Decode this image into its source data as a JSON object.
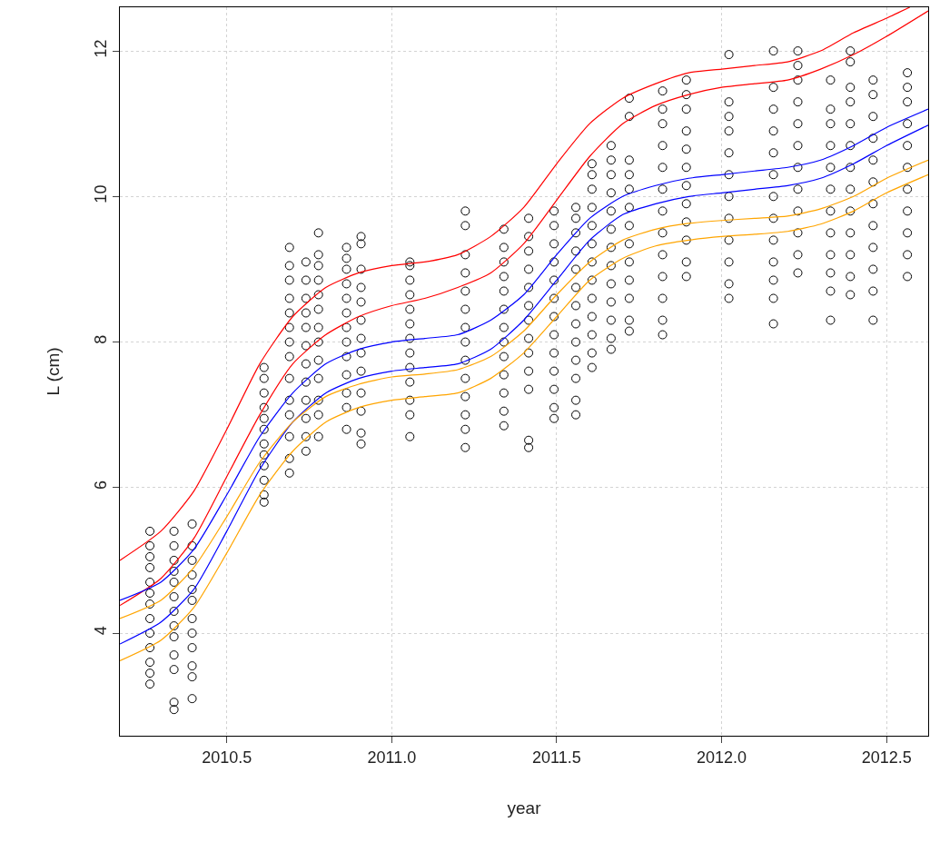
{
  "chart_data": {
    "type": "scatter",
    "marker": "circle",
    "xlabel": "year",
    "ylabel": "L (cm)",
    "xlim": [
      2010.176,
      2012.626
    ],
    "ylim": [
      2.59,
      12.6
    ],
    "xticks": [
      2010.5,
      {
        "value": 2011,
        "label": "2011.0"
      },
      2011.5,
      {
        "value": 2012,
        "label": "2012.0"
      },
      2012.5
    ],
    "yticks": [
      4,
      6,
      8,
      10,
      12
    ],
    "grid": true,
    "series": [
      {
        "color": "#000000",
        "x": [
          2010.267,
          2010.267,
          2010.267,
          2010.267,
          2010.267,
          2010.267,
          2010.267,
          2010.267,
          2010.267,
          2010.267,
          2010.267,
          2010.267,
          2010.267
        ],
        "values": [
          3.3,
          3.45,
          3.6,
          3.8,
          4.0,
          4.2,
          4.4,
          4.55,
          4.7,
          4.9,
          5.05,
          5.2,
          5.4
        ]
      },
      {
        "color": "#000000",
        "x": [
          2010.34,
          2010.34,
          2010.34,
          2010.34,
          2010.34,
          2010.34,
          2010.34,
          2010.34,
          2010.34,
          2010.34,
          2010.34,
          2010.34,
          2010.34
        ],
        "values": [
          2.95,
          3.05,
          3.5,
          3.7,
          3.95,
          4.1,
          4.3,
          4.5,
          4.7,
          4.85,
          5.0,
          5.2,
          5.4
        ]
      },
      {
        "color": "#000000",
        "x": [
          2010.395,
          2010.395,
          2010.395,
          2010.395,
          2010.395,
          2010.395,
          2010.395,
          2010.395,
          2010.395,
          2010.395,
          2010.395,
          2010.395
        ],
        "values": [
          3.1,
          3.4,
          3.55,
          3.8,
          4.0,
          4.2,
          4.45,
          4.6,
          4.8,
          5.0,
          5.2,
          5.5
        ]
      },
      {
        "color": "#000000",
        "x": [
          2010.613,
          2010.613,
          2010.613,
          2010.613,
          2010.613,
          2010.613,
          2010.613,
          2010.613,
          2010.613,
          2010.613,
          2010.613,
          2010.613
        ],
        "values": [
          5.8,
          5.9,
          6.1,
          6.3,
          6.45,
          6.6,
          6.8,
          6.95,
          7.1,
          7.3,
          7.5,
          7.65
        ]
      },
      {
        "color": "#000000",
        "x": [
          2010.69,
          2010.69,
          2010.69,
          2010.69,
          2010.69,
          2010.69,
          2010.69,
          2010.69,
          2010.69,
          2010.69,
          2010.69,
          2010.69,
          2010.69,
          2010.69
        ],
        "values": [
          6.2,
          6.4,
          6.7,
          7.0,
          7.2,
          7.5,
          7.8,
          8.0,
          8.2,
          8.4,
          8.6,
          8.85,
          9.05,
          9.3
        ]
      },
      {
        "color": "#000000",
        "x": [
          2010.74,
          2010.74,
          2010.74,
          2010.74,
          2010.74,
          2010.74,
          2010.74,
          2010.74,
          2010.74,
          2010.74,
          2010.74,
          2010.74
        ],
        "values": [
          6.5,
          6.7,
          6.95,
          7.2,
          7.45,
          7.7,
          7.95,
          8.2,
          8.4,
          8.6,
          8.85,
          9.1
        ]
      },
      {
        "color": "#000000",
        "x": [
          2010.778,
          2010.778,
          2010.778,
          2010.778,
          2010.778,
          2010.778,
          2010.778,
          2010.778,
          2010.778,
          2010.778,
          2010.778,
          2010.778,
          2010.778
        ],
        "values": [
          6.7,
          7.0,
          7.2,
          7.5,
          7.75,
          8.0,
          8.2,
          8.45,
          8.65,
          8.85,
          9.05,
          9.2,
          9.5
        ]
      },
      {
        "color": "#000000",
        "x": [
          2010.863,
          2010.863,
          2010.863,
          2010.863,
          2010.863,
          2010.863,
          2010.863,
          2010.863,
          2010.863,
          2010.863,
          2010.863,
          2010.863,
          2010.863
        ],
        "values": [
          6.8,
          7.1,
          7.3,
          7.55,
          7.8,
          8.0,
          8.2,
          8.4,
          8.6,
          8.8,
          9.0,
          9.15,
          9.3
        ]
      },
      {
        "color": "#000000",
        "x": [
          2010.907,
          2010.907,
          2010.907,
          2010.907,
          2010.907,
          2010.907,
          2010.907,
          2010.907,
          2010.907,
          2010.907,
          2010.907,
          2010.907,
          2010.907
        ],
        "values": [
          6.6,
          6.75,
          7.05,
          7.3,
          7.6,
          7.85,
          8.05,
          8.3,
          8.55,
          8.75,
          9.0,
          9.35,
          9.45
        ]
      },
      {
        "color": "#000000",
        "x": [
          2011.055,
          2011.055,
          2011.055,
          2011.055,
          2011.055,
          2011.055,
          2011.055,
          2011.055,
          2011.055,
          2011.055,
          2011.055,
          2011.055,
          2011.055
        ],
        "values": [
          6.7,
          7.0,
          7.2,
          7.45,
          7.65,
          7.85,
          8.05,
          8.25,
          8.45,
          8.65,
          8.85,
          9.05,
          9.1
        ]
      },
      {
        "color": "#000000",
        "x": [
          2011.223,
          2011.223,
          2011.223,
          2011.223,
          2011.223,
          2011.223,
          2011.223,
          2011.223,
          2011.223,
          2011.223,
          2011.223,
          2011.223,
          2011.223,
          2011.223
        ],
        "values": [
          6.55,
          6.8,
          7.0,
          7.25,
          7.5,
          7.75,
          8.0,
          8.2,
          8.45,
          8.7,
          8.95,
          9.2,
          9.6,
          9.8
        ]
      },
      {
        "color": "#000000",
        "x": [
          2011.34,
          2011.34,
          2011.34,
          2011.34,
          2011.34,
          2011.34,
          2011.34,
          2011.34,
          2011.34,
          2011.34,
          2011.34,
          2011.34,
          2011.34
        ],
        "values": [
          6.85,
          7.05,
          7.3,
          7.55,
          7.8,
          8.0,
          8.2,
          8.45,
          8.7,
          8.9,
          9.1,
          9.3,
          9.55
        ]
      },
      {
        "color": "#000000",
        "x": [
          2011.415,
          2011.415,
          2011.415,
          2011.415,
          2011.415,
          2011.415,
          2011.415,
          2011.415,
          2011.415,
          2011.415,
          2011.415,
          2011.415,
          2011.415
        ],
        "values": [
          6.55,
          6.65,
          7.35,
          7.6,
          7.85,
          8.05,
          8.3,
          8.5,
          8.75,
          9.0,
          9.25,
          9.45,
          9.7
        ]
      },
      {
        "color": "#000000",
        "x": [
          2011.492,
          2011.492,
          2011.492,
          2011.492,
          2011.492,
          2011.492,
          2011.492,
          2011.492,
          2011.492,
          2011.492,
          2011.492,
          2011.492,
          2011.492
        ],
        "values": [
          6.95,
          7.1,
          7.35,
          7.6,
          7.85,
          8.1,
          8.35,
          8.6,
          8.85,
          9.1,
          9.35,
          9.6,
          9.8
        ]
      },
      {
        "color": "#000000",
        "x": [
          2011.558,
          2011.558,
          2011.558,
          2011.558,
          2011.558,
          2011.558,
          2011.558,
          2011.558,
          2011.558,
          2011.558,
          2011.558,
          2011.558,
          2011.558
        ],
        "values": [
          7.0,
          7.2,
          7.5,
          7.75,
          8.0,
          8.25,
          8.5,
          8.75,
          9.0,
          9.25,
          9.5,
          9.7,
          9.85
        ]
      },
      {
        "color": "#000000",
        "x": [
          2011.607,
          2011.607,
          2011.607,
          2011.607,
          2011.607,
          2011.607,
          2011.607,
          2011.607,
          2011.607,
          2011.607,
          2011.607,
          2011.607,
          2011.607
        ],
        "values": [
          7.65,
          7.85,
          8.1,
          8.35,
          8.6,
          8.85,
          9.1,
          9.35,
          9.6,
          9.85,
          10.1,
          10.3,
          10.45
        ]
      },
      {
        "color": "#000000",
        "x": [
          2011.665,
          2011.665,
          2011.665,
          2011.665,
          2011.665,
          2011.665,
          2011.665,
          2011.665,
          2011.665,
          2011.665,
          2011.665,
          2011.665,
          2011.665
        ],
        "values": [
          7.9,
          8.05,
          8.3,
          8.55,
          8.8,
          9.05,
          9.3,
          9.55,
          9.8,
          10.05,
          10.3,
          10.5,
          10.7
        ]
      },
      {
        "color": "#000000",
        "x": [
          2011.72,
          2011.72,
          2011.72,
          2011.72,
          2011.72,
          2011.72,
          2011.72,
          2011.72,
          2011.72,
          2011.72,
          2011.72,
          2011.72,
          2011.72
        ],
        "values": [
          8.15,
          8.3,
          8.6,
          8.85,
          9.1,
          9.35,
          9.6,
          9.85,
          10.1,
          10.3,
          10.5,
          11.1,
          11.35
        ]
      },
      {
        "color": "#000000",
        "x": [
          2011.821,
          2011.821,
          2011.821,
          2011.821,
          2011.821,
          2011.821,
          2011.821,
          2011.821,
          2011.821,
          2011.821,
          2011.821,
          2011.821,
          2011.821
        ],
        "values": [
          8.1,
          8.3,
          8.6,
          8.9,
          9.2,
          9.5,
          9.8,
          10.1,
          10.4,
          10.7,
          11.0,
          11.2,
          11.45
        ]
      },
      {
        "color": "#000000",
        "x": [
          2011.893,
          2011.893,
          2011.893,
          2011.893,
          2011.893,
          2011.893,
          2011.893,
          2011.893,
          2011.893,
          2011.893,
          2011.893,
          2011.893
        ],
        "values": [
          8.9,
          9.1,
          9.4,
          9.65,
          9.9,
          10.15,
          10.4,
          10.65,
          10.9,
          11.2,
          11.4,
          11.6
        ]
      },
      {
        "color": "#000000",
        "x": [
          2012.022,
          2012.022,
          2012.022,
          2012.022,
          2012.022,
          2012.022,
          2012.022,
          2012.022,
          2012.022,
          2012.022,
          2012.022,
          2012.022
        ],
        "values": [
          8.6,
          8.8,
          9.1,
          9.4,
          9.7,
          10.0,
          10.3,
          10.6,
          10.9,
          11.1,
          11.3,
          11.95
        ]
      },
      {
        "color": "#000000",
        "x": [
          2012.157,
          2012.157,
          2012.157,
          2012.157,
          2012.157,
          2012.157,
          2012.157,
          2012.157,
          2012.157,
          2012.157,
          2012.157,
          2012.157,
          2012.157
        ],
        "values": [
          8.25,
          8.6,
          8.85,
          9.1,
          9.4,
          9.7,
          10.0,
          10.3,
          10.6,
          10.9,
          11.2,
          11.5,
          12.0
        ]
      },
      {
        "color": "#000000",
        "x": [
          2012.231,
          2012.231,
          2012.231,
          2012.231,
          2012.231,
          2012.231,
          2012.231,
          2012.231,
          2012.231,
          2012.231,
          2012.231,
          2012.231
        ],
        "values": [
          8.95,
          9.2,
          9.5,
          9.8,
          10.1,
          10.4,
          10.7,
          11.0,
          11.3,
          11.6,
          11.8,
          12.0
        ]
      },
      {
        "color": "#000000",
        "x": [
          2012.33,
          2012.33,
          2012.33,
          2012.33,
          2012.33,
          2012.33,
          2012.33,
          2012.33,
          2012.33,
          2012.33,
          2012.33,
          2012.33
        ],
        "values": [
          8.3,
          8.7,
          8.95,
          9.2,
          9.5,
          9.8,
          10.1,
          10.4,
          10.7,
          11.0,
          11.2,
          11.6
        ]
      },
      {
        "color": "#000000",
        "x": [
          2012.39,
          2012.39,
          2012.39,
          2012.39,
          2012.39,
          2012.39,
          2012.39,
          2012.39,
          2012.39,
          2012.39,
          2012.39,
          2012.39,
          2012.39
        ],
        "values": [
          8.65,
          8.9,
          9.2,
          9.5,
          9.8,
          10.1,
          10.4,
          10.7,
          11.0,
          11.3,
          11.5,
          11.85,
          12.0
        ]
      },
      {
        "color": "#000000",
        "x": [
          2012.459,
          2012.459,
          2012.459,
          2012.459,
          2012.459,
          2012.459,
          2012.459,
          2012.459,
          2012.459,
          2012.459,
          2012.459,
          2012.459
        ],
        "values": [
          8.3,
          8.7,
          9.0,
          9.3,
          9.6,
          9.9,
          10.2,
          10.5,
          10.8,
          11.1,
          11.4,
          11.6
        ]
      },
      {
        "color": "#000000",
        "x": [
          2012.563,
          2012.563,
          2012.563,
          2012.563,
          2012.563,
          2012.563,
          2012.563,
          2012.563,
          2012.563,
          2012.563,
          2012.563
        ],
        "values": [
          8.9,
          9.2,
          9.5,
          9.8,
          10.1,
          10.4,
          10.7,
          11.0,
          11.3,
          11.5,
          11.7
        ]
      },
      {
        "type": "line",
        "marker": "none",
        "color": "#ff0000",
        "x": [
          2010.176,
          2010.3,
          2010.4,
          2010.5,
          2010.6,
          2010.7,
          2010.8,
          2010.9,
          2011.0,
          2011.1,
          2011.2,
          2011.3,
          2011.4,
          2011.5,
          2011.6,
          2011.7,
          2011.8,
          2011.9,
          2012.0,
          2012.1,
          2012.2,
          2012.3,
          2012.4,
          2012.5,
          2012.57
        ],
        "values": [
          5.0,
          5.4,
          5.95,
          6.8,
          7.7,
          8.35,
          8.75,
          8.95,
          9.05,
          9.1,
          9.2,
          9.45,
          9.85,
          10.45,
          11.0,
          11.35,
          11.55,
          11.7,
          11.75,
          11.8,
          11.85,
          12.0,
          12.25,
          12.45,
          12.6
        ]
      },
      {
        "type": "line",
        "marker": "none",
        "color": "#ff0000",
        "x": [
          2010.176,
          2010.3,
          2010.4,
          2010.5,
          2010.6,
          2010.7,
          2010.8,
          2010.9,
          2011.0,
          2011.1,
          2011.2,
          2011.3,
          2011.4,
          2011.5,
          2011.6,
          2011.7,
          2011.8,
          2011.9,
          2012.0,
          2012.1,
          2012.2,
          2012.3,
          2012.4,
          2012.5,
          2012.626
        ],
        "values": [
          4.38,
          4.75,
          5.3,
          6.15,
          7.0,
          7.7,
          8.1,
          8.35,
          8.5,
          8.6,
          8.75,
          8.95,
          9.35,
          9.95,
          10.55,
          11.0,
          11.25,
          11.4,
          11.5,
          11.55,
          11.6,
          11.75,
          11.95,
          12.2,
          12.55
        ]
      },
      {
        "type": "line",
        "marker": "none",
        "color": "#0000ff",
        "x": [
          2010.176,
          2010.3,
          2010.4,
          2010.5,
          2010.6,
          2010.7,
          2010.8,
          2010.9,
          2011.0,
          2011.1,
          2011.2,
          2011.3,
          2011.4,
          2011.5,
          2011.6,
          2011.7,
          2011.8,
          2011.9,
          2012.0,
          2012.1,
          2012.2,
          2012.3,
          2012.4,
          2012.5,
          2012.626
        ],
        "values": [
          4.45,
          4.7,
          5.15,
          5.9,
          6.7,
          7.3,
          7.7,
          7.9,
          8.0,
          8.05,
          8.1,
          8.3,
          8.65,
          9.2,
          9.7,
          10.0,
          10.15,
          10.25,
          10.3,
          10.35,
          10.4,
          10.5,
          10.7,
          10.95,
          11.2
        ]
      },
      {
        "type": "line",
        "marker": "none",
        "color": "#0000ff",
        "x": [
          2010.176,
          2010.3,
          2010.4,
          2010.5,
          2010.6,
          2010.7,
          2010.8,
          2010.9,
          2011.0,
          2011.1,
          2011.2,
          2011.3,
          2011.4,
          2011.5,
          2011.6,
          2011.7,
          2011.8,
          2011.9,
          2012.0,
          2012.1,
          2012.2,
          2012.3,
          2012.4,
          2012.5,
          2012.626
        ],
        "values": [
          3.85,
          4.15,
          4.6,
          5.4,
          6.25,
          6.9,
          7.3,
          7.5,
          7.6,
          7.65,
          7.7,
          7.9,
          8.3,
          8.85,
          9.4,
          9.75,
          9.9,
          10.0,
          10.05,
          10.1,
          10.15,
          10.25,
          10.45,
          10.7,
          10.98
        ]
      },
      {
        "type": "line",
        "marker": "none",
        "color": "#ffa500",
        "x": [
          2010.176,
          2010.3,
          2010.4,
          2010.5,
          2010.6,
          2010.7,
          2010.8,
          2010.9,
          2011.0,
          2011.1,
          2011.2,
          2011.3,
          2011.4,
          2011.5,
          2011.6,
          2011.7,
          2011.8,
          2011.9,
          2012.0,
          2012.1,
          2012.2,
          2012.3,
          2012.4,
          2012.5,
          2012.626
        ],
        "values": [
          4.2,
          4.45,
          4.9,
          5.6,
          6.35,
          6.9,
          7.25,
          7.42,
          7.52,
          7.56,
          7.62,
          7.8,
          8.15,
          8.65,
          9.1,
          9.4,
          9.55,
          9.63,
          9.67,
          9.7,
          9.73,
          9.83,
          10.0,
          10.25,
          10.5
        ]
      },
      {
        "type": "line",
        "marker": "none",
        "color": "#ffa500",
        "x": [
          2010.176,
          2010.3,
          2010.4,
          2010.5,
          2010.6,
          2010.7,
          2010.8,
          2010.9,
          2011.0,
          2011.1,
          2011.2,
          2011.3,
          2011.4,
          2011.5,
          2011.6,
          2011.7,
          2011.8,
          2011.9,
          2012.0,
          2012.1,
          2012.2,
          2012.3,
          2012.4,
          2012.5,
          2012.626
        ],
        "values": [
          3.62,
          3.9,
          4.35,
          5.1,
          5.9,
          6.5,
          6.9,
          7.1,
          7.2,
          7.25,
          7.3,
          7.5,
          7.85,
          8.35,
          8.85,
          9.15,
          9.32,
          9.4,
          9.45,
          9.48,
          9.52,
          9.62,
          9.8,
          10.05,
          10.3
        ]
      }
    ]
  }
}
